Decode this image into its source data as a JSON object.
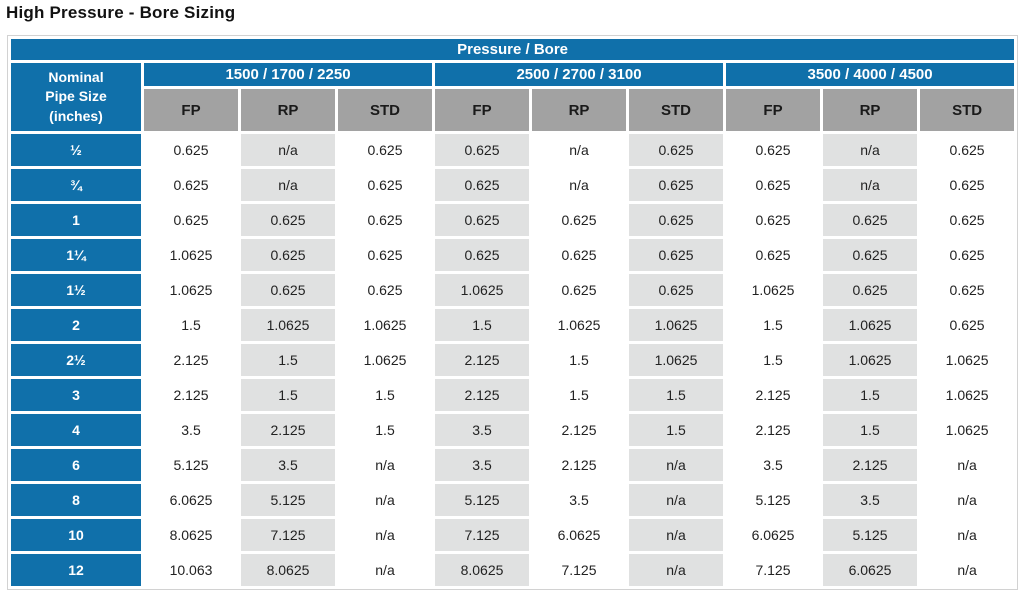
{
  "title": "High Pressure - Bore Sizing",
  "colors": {
    "header_blue": "#1070AA",
    "subheader_gray": "#a2a2a2",
    "shaded_column_gray": "#e0e1e1",
    "header_text": "#ffffff",
    "cell_text": "#222222"
  },
  "table": {
    "top_header": "Pressure / Bore",
    "corner_lines": [
      "Nominal",
      "Pipe Size",
      "(inches)"
    ],
    "groups": [
      "1500 / 1700 / 2250",
      "2500 / 2700 / 3100",
      "3500 / 4000 / 4500"
    ],
    "sub_columns": [
      "FP",
      "RP",
      "STD"
    ],
    "rows": [
      {
        "size": "½",
        "values": [
          "0.625",
          "n/a",
          "0.625",
          "0.625",
          "n/a",
          "0.625",
          "0.625",
          "n/a",
          "0.625"
        ]
      },
      {
        "size": "¾",
        "values": [
          "0.625",
          "n/a",
          "0.625",
          "0.625",
          "n/a",
          "0.625",
          "0.625",
          "n/a",
          "0.625"
        ]
      },
      {
        "size": "1",
        "values": [
          "0.625",
          "0.625",
          "0.625",
          "0.625",
          "0.625",
          "0.625",
          "0.625",
          "0.625",
          "0.625"
        ]
      },
      {
        "size": "1¼",
        "values": [
          "1.0625",
          "0.625",
          "0.625",
          "0.625",
          "0.625",
          "0.625",
          "0.625",
          "0.625",
          "0.625"
        ]
      },
      {
        "size": "1½",
        "values": [
          "1.0625",
          "0.625",
          "0.625",
          "1.0625",
          "0.625",
          "0.625",
          "1.0625",
          "0.625",
          "0.625"
        ]
      },
      {
        "size": "2",
        "values": [
          "1.5",
          "1.0625",
          "1.0625",
          "1.5",
          "1.0625",
          "1.0625",
          "1.5",
          "1.0625",
          "0.625"
        ]
      },
      {
        "size": "2½",
        "values": [
          "2.125",
          "1.5",
          "1.0625",
          "2.125",
          "1.5",
          "1.0625",
          "1.5",
          "1.0625",
          "1.0625"
        ]
      },
      {
        "size": "3",
        "values": [
          "2.125",
          "1.5",
          "1.5",
          "2.125",
          "1.5",
          "1.5",
          "2.125",
          "1.5",
          "1.0625"
        ]
      },
      {
        "size": "4",
        "values": [
          "3.5",
          "2.125",
          "1.5",
          "3.5",
          "2.125",
          "1.5",
          "2.125",
          "1.5",
          "1.0625"
        ]
      },
      {
        "size": "6",
        "values": [
          "5.125",
          "3.5",
          "n/a",
          "3.5",
          "2.125",
          "n/a",
          "3.5",
          "2.125",
          "n/a"
        ]
      },
      {
        "size": "8",
        "values": [
          "6.0625",
          "5.125",
          "n/a",
          "5.125",
          "3.5",
          "n/a",
          "5.125",
          "3.5",
          "n/a"
        ]
      },
      {
        "size": "10",
        "values": [
          "8.0625",
          "7.125",
          "n/a",
          "7.125",
          "6.0625",
          "n/a",
          "6.0625",
          "5.125",
          "n/a"
        ]
      },
      {
        "size": "12",
        "values": [
          "10.063",
          "8.0625",
          "n/a",
          "8.0625",
          "7.125",
          "n/a",
          "7.125",
          "6.0625",
          "n/a"
        ]
      }
    ]
  }
}
